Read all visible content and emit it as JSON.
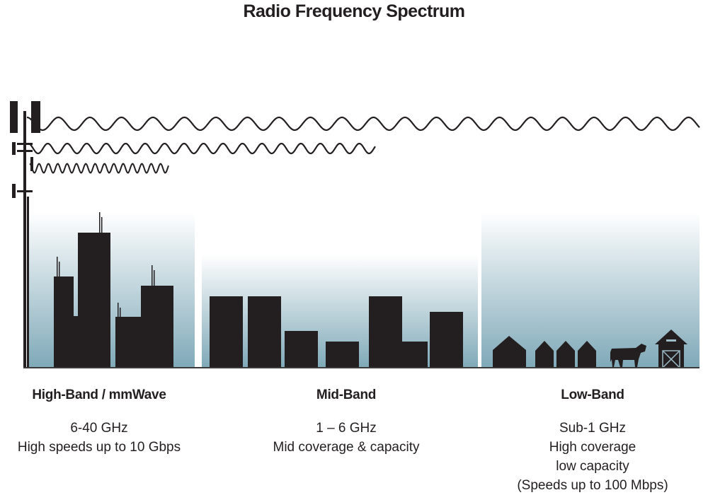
{
  "title": "Radio Frequency Spectrum",
  "colors": {
    "ink": "#231f20",
    "sky_bottom": "#7fa9b8",
    "sky_top": "#ffffff"
  },
  "bands": [
    {
      "name": "High-Band / mmWave",
      "lines": [
        "6-40 GHz",
        "High speeds up to 10 Gbps"
      ]
    },
    {
      "name": "Mid-Band",
      "lines": [
        "1 – 6 GHz",
        "Mid coverage & capacity"
      ]
    },
    {
      "name": "Low-Band",
      "lines": [
        "Sub-1 GHz",
        "High coverage",
        "low capacity",
        "(Speeds up to 100 Mbps)"
      ]
    }
  ]
}
